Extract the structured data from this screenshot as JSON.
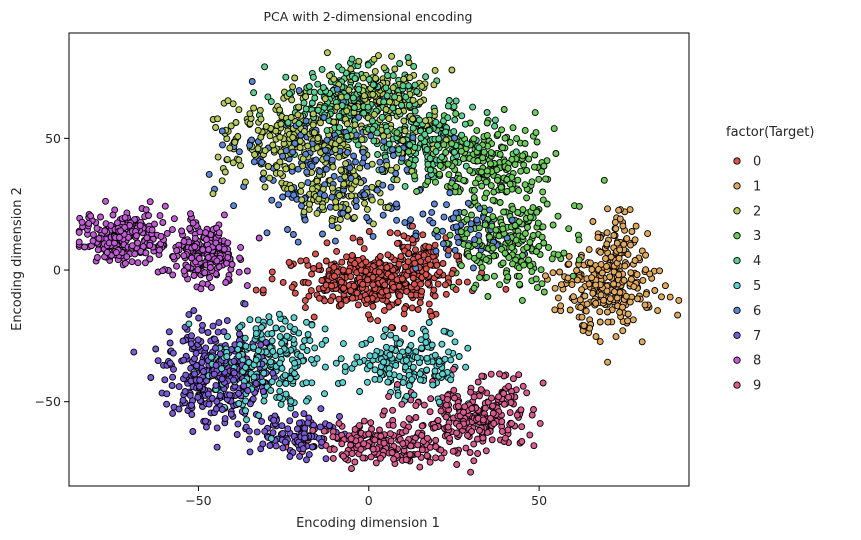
{
  "chart_data": {
    "type": "scatter",
    "title": "PCA with 2-dimensional encoding",
    "xlabel": "Encoding dimension 1",
    "ylabel": "Encoding dimension 2",
    "xlim": [
      -88,
      94
    ],
    "ylim": [
      -82,
      90
    ],
    "xticks": [
      -50,
      0,
      50
    ],
    "yticks": [
      -50,
      0,
      50
    ],
    "xtick_labels": [
      "−50",
      "0",
      "50"
    ],
    "ytick_labels": [
      "−50",
      "0",
      "50"
    ],
    "grid": false,
    "legend": {
      "title": "factor(Target)",
      "placement": "right",
      "entries": [
        "0",
        "1",
        "2",
        "3",
        "4",
        "5",
        "6",
        "7",
        "8",
        "9"
      ]
    },
    "colors": [
      "#d9534f",
      "#e0a85a",
      "#b5cc5a",
      "#6ccc5a",
      "#5ad18f",
      "#5acfcf",
      "#5a86d4",
      "#7a5ad4",
      "#c05ad4",
      "#d95a8f"
    ],
    "series": [
      {
        "name": "0",
        "clusters": [
          {
            "cx": 0,
            "cy": -4,
            "sx": 12,
            "sy": 6,
            "n": 420
          },
          {
            "cx": 15,
            "cy": 5,
            "sx": 6,
            "sy": 5,
            "n": 60
          }
        ]
      },
      {
        "name": "1",
        "clusters": [
          {
            "cx": 70,
            "cy": -8,
            "sx": 7,
            "sy": 8,
            "n": 240
          },
          {
            "cx": 72,
            "cy": 10,
            "sx": 4,
            "sy": 6,
            "n": 60
          }
        ]
      },
      {
        "name": "2",
        "clusters": [
          {
            "cx": -20,
            "cy": 50,
            "sx": 12,
            "sy": 9,
            "n": 260
          },
          {
            "cx": 5,
            "cy": 65,
            "sx": 8,
            "sy": 8,
            "n": 160
          },
          {
            "cx": -10,
            "cy": 30,
            "sx": 8,
            "sy": 6,
            "n": 120
          }
        ]
      },
      {
        "name": "3",
        "clusters": [
          {
            "cx": 35,
            "cy": 40,
            "sx": 9,
            "sy": 8,
            "n": 240
          },
          {
            "cx": 40,
            "cy": 10,
            "sx": 8,
            "sy": 8,
            "n": 220
          }
        ]
      },
      {
        "name": "4",
        "clusters": [
          {
            "cx": -5,
            "cy": 65,
            "sx": 10,
            "sy": 7,
            "n": 230
          },
          {
            "cx": 15,
            "cy": 50,
            "sx": 9,
            "sy": 7,
            "n": 170
          }
        ]
      },
      {
        "name": "5",
        "clusters": [
          {
            "cx": -30,
            "cy": -35,
            "sx": 7,
            "sy": 9,
            "n": 250
          },
          {
            "cx": 10,
            "cy": -35,
            "sx": 9,
            "sy": 6,
            "n": 180
          }
        ]
      },
      {
        "name": "6",
        "clusters": [
          {
            "cx": -10,
            "cy": 40,
            "sx": 15,
            "sy": 12,
            "n": 200
          },
          {
            "cx": 25,
            "cy": 15,
            "sx": 8,
            "sy": 6,
            "n": 60
          }
        ]
      },
      {
        "name": "7",
        "clusters": [
          {
            "cx": -45,
            "cy": -40,
            "sx": 7,
            "sy": 9,
            "n": 330
          },
          {
            "cx": -22,
            "cy": -63,
            "sx": 7,
            "sy": 4,
            "n": 110
          }
        ]
      },
      {
        "name": "8",
        "clusters": [
          {
            "cx": -72,
            "cy": 12,
            "sx": 6,
            "sy": 5,
            "n": 260
          },
          {
            "cx": -48,
            "cy": 6,
            "sx": 5,
            "sy": 6,
            "n": 200
          }
        ]
      },
      {
        "name": "9",
        "clusters": [
          {
            "cx": 30,
            "cy": -55,
            "sx": 9,
            "sy": 7,
            "n": 250
          },
          {
            "cx": 5,
            "cy": -66,
            "sx": 10,
            "sy": 4,
            "n": 180
          }
        ]
      }
    ]
  }
}
